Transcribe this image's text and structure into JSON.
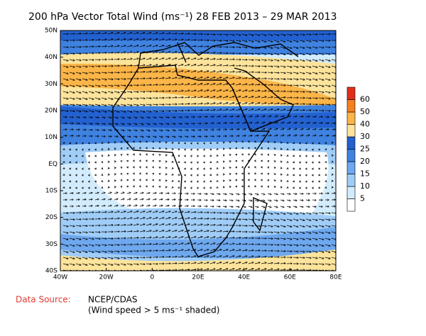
{
  "title": "200 hPa Vector Total Wind (ms⁻¹) 28 FEB 2013 – 29 MAR 2013",
  "map": {
    "xlim": [
      -40,
      80
    ],
    "ylim": [
      -40,
      50
    ],
    "xticks": [
      {
        "value": -40,
        "label": "40W"
      },
      {
        "value": -20,
        "label": "20W"
      },
      0,
      {
        "value": 20,
        "label": "20E"
      },
      {
        "value": 40,
        "label": "40E"
      },
      {
        "value": 60,
        "label": "60E"
      },
      {
        "value": 80,
        "label": "80E"
      }
    ],
    "yticks": [
      {
        "value": 50,
        "label": "50N"
      },
      {
        "value": 40,
        "label": "40N"
      },
      {
        "value": 30,
        "label": "30N"
      },
      {
        "value": 20,
        "label": "20N"
      },
      {
        "value": 10,
        "label": "10N"
      },
      {
        "value": 0,
        "label": "EQ"
      },
      {
        "value": -10,
        "label": "10S"
      },
      {
        "value": -20,
        "label": "20S"
      },
      {
        "value": -30,
        "label": "30S"
      },
      {
        "value": -40,
        "label": "40S"
      }
    ],
    "colorbar": {
      "levels": [
        5,
        10,
        15,
        20,
        25,
        30,
        40,
        50,
        60
      ],
      "colors": [
        "#ffffff",
        "#d2ecfd",
        "#a0cdf7",
        "#6ea8ee",
        "#3f82e0",
        "#2361d0",
        "#fde49c",
        "#fbb548",
        "#f5801f",
        "#e0301a"
      ]
    }
  },
  "source_label": "Data Source:",
  "source": "NCEP/CDAS",
  "note": "(Wind speed > 5 ms⁻¹ shaded)"
}
